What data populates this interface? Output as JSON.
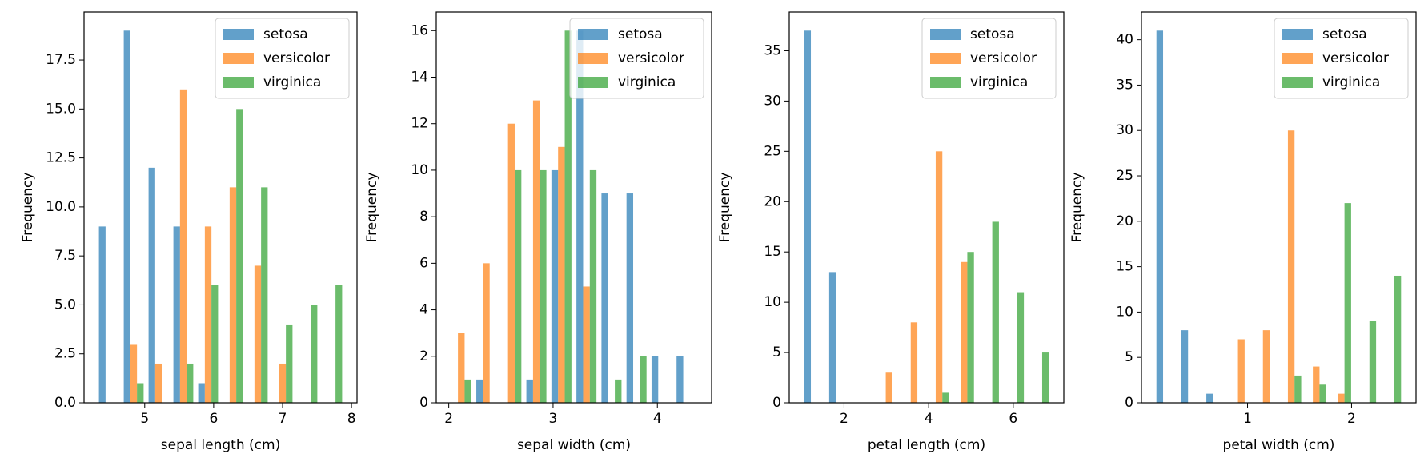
{
  "chart_data": [
    {
      "type": "histogram",
      "xlabel": "sepal length (cm)",
      "ylabel": "Frequency",
      "bins": [
        4.3,
        4.66,
        5.02,
        5.38,
        5.74,
        6.1,
        6.46,
        6.82,
        7.18,
        7.54,
        7.9
      ],
      "series": [
        {
          "name": "setosa",
          "color": "#1f77b4",
          "values": [
            9,
            19,
            12,
            9,
            1,
            0,
            0,
            0,
            0,
            0
          ]
        },
        {
          "name": "versicolor",
          "color": "#ff7f0e",
          "values": [
            0,
            3,
            2,
            16,
            9,
            11,
            7,
            2,
            0,
            0
          ]
        },
        {
          "name": "virginica",
          "color": "#2ca02c",
          "values": [
            0,
            1,
            0,
            2,
            6,
            15,
            11,
            4,
            5,
            6
          ]
        }
      ],
      "xlim": [
        4.12,
        8.08
      ],
      "xticks": [
        5,
        6,
        7,
        8
      ],
      "ylim": [
        0,
        19.95
      ],
      "yticks": [
        {
          "value": 0,
          "label": "0.0"
        },
        {
          "value": 2.5,
          "label": "2.5"
        },
        {
          "value": 5,
          "label": "5.0"
        },
        {
          "value": 7.5,
          "label": "7.5"
        },
        {
          "value": 10,
          "label": "10.0"
        },
        {
          "value": 12.5,
          "label": "12.5"
        },
        {
          "value": 15,
          "label": "15.0"
        },
        {
          "value": 17.5,
          "label": "17.5"
        }
      ],
      "legend": "upper right"
    },
    {
      "type": "histogram",
      "xlabel": "sepal width (cm)",
      "ylabel": "Frequency",
      "bins": [
        2.0,
        2.24,
        2.48,
        2.72,
        2.96,
        3.2,
        3.44,
        3.68,
        3.92,
        4.16,
        4.4
      ],
      "series": [
        {
          "name": "setosa",
          "color": "#1f77b4",
          "values": [
            0,
            1,
            0,
            1,
            10,
            16,
            9,
            9,
            2,
            2
          ]
        },
        {
          "name": "versicolor",
          "color": "#ff7f0e",
          "values": [
            3,
            6,
            12,
            13,
            11,
            5,
            0,
            0,
            0,
            0
          ]
        },
        {
          "name": "virginica",
          "color": "#2ca02c",
          "values": [
            1,
            0,
            10,
            10,
            16,
            10,
            1,
            2,
            0,
            0
          ]
        }
      ],
      "xlim": [
        1.88,
        4.52
      ],
      "xticks": [
        2,
        3,
        4
      ],
      "ylim": [
        0,
        16.8
      ],
      "yticks": [
        0,
        2,
        4,
        6,
        8,
        10,
        12,
        14,
        16
      ],
      "legend": "upper right"
    },
    {
      "type": "histogram",
      "xlabel": "petal length (cm)",
      "ylabel": "Frequency",
      "bins": [
        1.0,
        1.59,
        2.18,
        2.77,
        3.36,
        3.95,
        4.54,
        5.13,
        5.72,
        6.31,
        6.9
      ],
      "series": [
        {
          "name": "setosa",
          "color": "#1f77b4",
          "values": [
            37,
            13,
            0,
            0,
            0,
            0,
            0,
            0,
            0,
            0
          ]
        },
        {
          "name": "versicolor",
          "color": "#ff7f0e",
          "values": [
            0,
            0,
            0,
            3,
            8,
            25,
            14,
            0,
            0,
            0
          ]
        },
        {
          "name": "virginica",
          "color": "#2ca02c",
          "values": [
            0,
            0,
            0,
            0,
            0,
            1,
            15,
            18,
            11,
            5
          ]
        }
      ],
      "xlim": [
        0.705,
        7.195
      ],
      "xticks": [
        2,
        4,
        6
      ],
      "ylim": [
        0,
        38.85
      ],
      "yticks": [
        0,
        5,
        10,
        15,
        20,
        25,
        30,
        35
      ],
      "legend": "upper right"
    },
    {
      "type": "histogram",
      "xlabel": "petal width (cm)",
      "ylabel": "Frequency",
      "bins": [
        0.1,
        0.34,
        0.58,
        0.82,
        1.06,
        1.3,
        1.54,
        1.78,
        2.02,
        2.26,
        2.5
      ],
      "series": [
        {
          "name": "setosa",
          "color": "#1f77b4",
          "values": [
            41,
            8,
            1,
            0,
            0,
            0,
            0,
            0,
            0,
            0
          ]
        },
        {
          "name": "versicolor",
          "color": "#ff7f0e",
          "values": [
            0,
            0,
            0,
            7,
            8,
            30,
            4,
            1,
            0,
            0
          ]
        },
        {
          "name": "virginica",
          "color": "#2ca02c",
          "values": [
            0,
            0,
            0,
            0,
            0,
            3,
            2,
            22,
            9,
            14
          ]
        }
      ],
      "xlim": [
        -0.02,
        2.62
      ],
      "xticks": [
        1,
        2
      ],
      "ylim": [
        0,
        43.05
      ],
      "yticks": [
        0,
        5,
        10,
        15,
        20,
        25,
        30,
        35,
        40
      ],
      "legend": "upper right"
    }
  ]
}
